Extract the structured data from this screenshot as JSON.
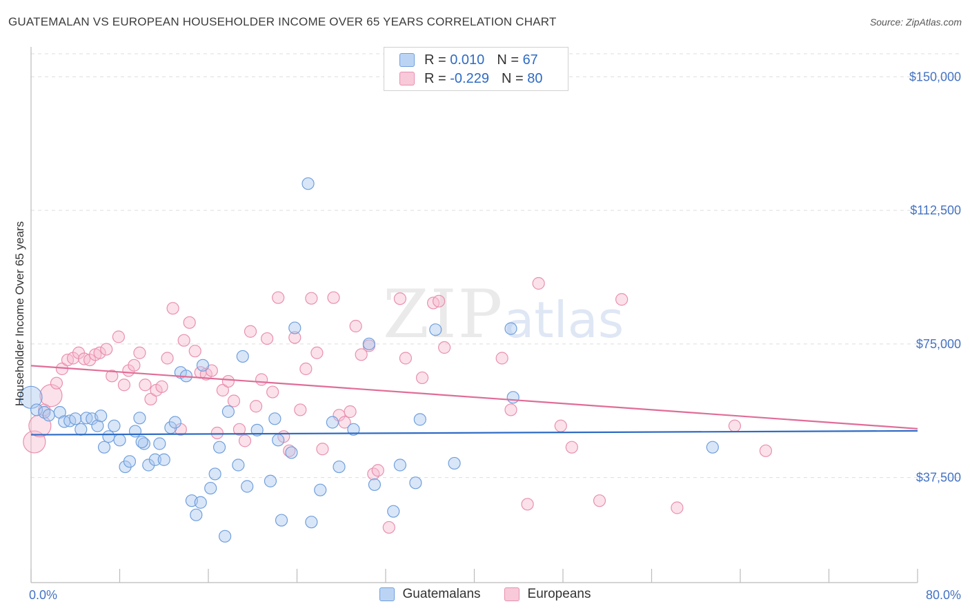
{
  "header": {
    "title": "GUATEMALAN VS EUROPEAN HOUSEHOLDER INCOME OVER 65 YEARS CORRELATION CHART",
    "source": "Source: ZipAtlas.com"
  },
  "legend": {
    "rows": [
      {
        "r_label": "R = ",
        "r_value": "0.010",
        "n_label": "N = ",
        "n_value": "67"
      },
      {
        "r_label": "R = ",
        "r_value": "-0.229",
        "n_label": "N = ",
        "n_value": "80"
      }
    ]
  },
  "watermark": {
    "zip": "ZIP",
    "atlas": "atlas"
  },
  "chart_data": {
    "type": "scatter",
    "title": "GUATEMALAN VS EUROPEAN HOUSEHOLDER INCOME OVER 65 YEARS CORRELATION CHART",
    "xlabel": "",
    "ylabel": "Householder Income Over 65 years",
    "xlim": [
      0,
      80
    ],
    "ylim": [
      8000,
      158000
    ],
    "x_tick_labels": [
      "0.0%",
      "80.0%"
    ],
    "y_ticks": [
      37500,
      75000,
      112500,
      150000
    ],
    "y_tick_labels": [
      "$37,500",
      "$75,000",
      "$112,500",
      "$150,000"
    ],
    "grid": true,
    "legend_position": "top-center",
    "colors": {
      "guatemalans_fill": "#aac8f0",
      "guatemalans_stroke": "#6f9fdc",
      "guatemalans_line": "#2e6bc4",
      "europeans_fill": "#f6bcd0",
      "europeans_stroke": "#e98fae",
      "europeans_line": "#e06c97"
    },
    "series": [
      {
        "name": "Guatemalans",
        "trend": {
          "x": [
            0,
            80
          ],
          "y": [
            49500,
            50600
          ]
        },
        "points": [
          {
            "x": 0.0,
            "y": 60000,
            "big": true
          },
          {
            "x": 0.5,
            "y": 56500
          },
          {
            "x": 1.2,
            "y": 55800
          },
          {
            "x": 1.6,
            "y": 55000
          },
          {
            "x": 2.6,
            "y": 55800
          },
          {
            "x": 3.0,
            "y": 53200
          },
          {
            "x": 3.5,
            "y": 53400
          },
          {
            "x": 4.0,
            "y": 54000
          },
          {
            "x": 4.5,
            "y": 51000
          },
          {
            "x": 5.0,
            "y": 54200
          },
          {
            "x": 5.5,
            "y": 54000
          },
          {
            "x": 6.0,
            "y": 52000
          },
          {
            "x": 6.3,
            "y": 54800
          },
          {
            "x": 6.6,
            "y": 46000
          },
          {
            "x": 7.0,
            "y": 49000
          },
          {
            "x": 7.5,
            "y": 52000
          },
          {
            "x": 8.0,
            "y": 48000
          },
          {
            "x": 8.5,
            "y": 40500
          },
          {
            "x": 8.9,
            "y": 42000
          },
          {
            "x": 9.4,
            "y": 50500
          },
          {
            "x": 9.8,
            "y": 54200
          },
          {
            "x": 10.2,
            "y": 47000
          },
          {
            "x": 10.6,
            "y": 41000
          },
          {
            "x": 11.2,
            "y": 42500
          },
          {
            "x": 11.6,
            "y": 47000
          },
          {
            "x": 12.0,
            "y": 42500
          },
          {
            "x": 12.6,
            "y": 51500
          },
          {
            "x": 13.0,
            "y": 53000
          },
          {
            "x": 13.5,
            "y": 67000
          },
          {
            "x": 14.0,
            "y": 66000
          },
          {
            "x": 14.5,
            "y": 31000
          },
          {
            "x": 14.9,
            "y": 27000
          },
          {
            "x": 15.3,
            "y": 30500
          },
          {
            "x": 15.5,
            "y": 69000
          },
          {
            "x": 16.2,
            "y": 34500
          },
          {
            "x": 16.6,
            "y": 38500
          },
          {
            "x": 17.0,
            "y": 46000
          },
          {
            "x": 17.5,
            "y": 21000
          },
          {
            "x": 17.8,
            "y": 56000
          },
          {
            "x": 18.7,
            "y": 41000
          },
          {
            "x": 19.1,
            "y": 71500
          },
          {
            "x": 19.5,
            "y": 35000
          },
          {
            "x": 20.4,
            "y": 50800
          },
          {
            "x": 21.6,
            "y": 36500
          },
          {
            "x": 22.0,
            "y": 54000
          },
          {
            "x": 22.3,
            "y": 48000
          },
          {
            "x": 22.6,
            "y": 25500
          },
          {
            "x": 23.5,
            "y": 44500
          },
          {
            "x": 23.8,
            "y": 79500
          },
          {
            "x": 25.0,
            "y": 120000
          },
          {
            "x": 25.3,
            "y": 25000
          },
          {
            "x": 26.1,
            "y": 34000
          },
          {
            "x": 27.2,
            "y": 53000
          },
          {
            "x": 27.8,
            "y": 40500
          },
          {
            "x": 29.1,
            "y": 51000
          },
          {
            "x": 30.5,
            "y": 75000
          },
          {
            "x": 31.0,
            "y": 35500
          },
          {
            "x": 32.7,
            "y": 28000
          },
          {
            "x": 33.3,
            "y": 41000
          },
          {
            "x": 34.7,
            "y": 36000
          },
          {
            "x": 35.1,
            "y": 53800
          },
          {
            "x": 36.5,
            "y": 79000
          },
          {
            "x": 38.2,
            "y": 41500
          },
          {
            "x": 43.3,
            "y": 79300
          },
          {
            "x": 43.5,
            "y": 60000
          },
          {
            "x": 61.5,
            "y": 46000
          },
          {
            "x": 10.0,
            "y": 47500
          }
        ]
      },
      {
        "name": "Europeans",
        "trend": {
          "x": [
            0,
            80
          ],
          "y": [
            68900,
            51200
          ]
        },
        "points": [
          {
            "x": 0.3,
            "y": 47500,
            "big": true
          },
          {
            "x": 0.8,
            "y": 52000,
            "big": true
          },
          {
            "x": 1.2,
            "y": 56500
          },
          {
            "x": 1.8,
            "y": 60500,
            "big": true
          },
          {
            "x": 2.3,
            "y": 64000
          },
          {
            "x": 2.8,
            "y": 68000
          },
          {
            "x": 3.3,
            "y": 70500
          },
          {
            "x": 3.8,
            "y": 71000
          },
          {
            "x": 4.3,
            "y": 72500
          },
          {
            "x": 4.8,
            "y": 70800
          },
          {
            "x": 5.3,
            "y": 70500
          },
          {
            "x": 5.8,
            "y": 72000
          },
          {
            "x": 6.2,
            "y": 72500
          },
          {
            "x": 6.8,
            "y": 73500
          },
          {
            "x": 7.3,
            "y": 66000
          },
          {
            "x": 7.9,
            "y": 77000
          },
          {
            "x": 8.4,
            "y": 63500
          },
          {
            "x": 8.8,
            "y": 67500
          },
          {
            "x": 9.3,
            "y": 69000
          },
          {
            "x": 9.8,
            "y": 72500
          },
          {
            "x": 10.3,
            "y": 63500
          },
          {
            "x": 10.8,
            "y": 59500
          },
          {
            "x": 11.3,
            "y": 62000
          },
          {
            "x": 11.8,
            "y": 63000
          },
          {
            "x": 12.3,
            "y": 71000
          },
          {
            "x": 12.8,
            "y": 85000
          },
          {
            "x": 13.5,
            "y": 51000
          },
          {
            "x": 13.8,
            "y": 76000
          },
          {
            "x": 14.3,
            "y": 81000
          },
          {
            "x": 14.8,
            "y": 73000
          },
          {
            "x": 15.3,
            "y": 67000
          },
          {
            "x": 15.8,
            "y": 66500
          },
          {
            "x": 16.3,
            "y": 67500
          },
          {
            "x": 16.8,
            "y": 50000
          },
          {
            "x": 17.3,
            "y": 62000
          },
          {
            "x": 17.8,
            "y": 64500
          },
          {
            "x": 18.3,
            "y": 59000
          },
          {
            "x": 18.8,
            "y": 51000
          },
          {
            "x": 19.3,
            "y": 47800
          },
          {
            "x": 19.8,
            "y": 78500
          },
          {
            "x": 20.3,
            "y": 57500
          },
          {
            "x": 20.8,
            "y": 65000
          },
          {
            "x": 21.3,
            "y": 76500
          },
          {
            "x": 21.8,
            "y": 61500
          },
          {
            "x": 22.3,
            "y": 88000
          },
          {
            "x": 22.8,
            "y": 49000
          },
          {
            "x": 23.3,
            "y": 45000
          },
          {
            "x": 23.8,
            "y": 76800
          },
          {
            "x": 24.3,
            "y": 56500
          },
          {
            "x": 24.8,
            "y": 68000
          },
          {
            "x": 25.3,
            "y": 87800
          },
          {
            "x": 25.8,
            "y": 72500
          },
          {
            "x": 26.3,
            "y": 45500
          },
          {
            "x": 27.3,
            "y": 88000
          },
          {
            "x": 27.8,
            "y": 55000
          },
          {
            "x": 28.3,
            "y": 53000
          },
          {
            "x": 28.8,
            "y": 56000
          },
          {
            "x": 29.3,
            "y": 80000
          },
          {
            "x": 29.8,
            "y": 72000
          },
          {
            "x": 30.5,
            "y": 74500
          },
          {
            "x": 30.9,
            "y": 38500
          },
          {
            "x": 31.3,
            "y": 39500
          },
          {
            "x": 32.3,
            "y": 23500
          },
          {
            "x": 33.3,
            "y": 87700
          },
          {
            "x": 33.8,
            "y": 71000
          },
          {
            "x": 35.3,
            "y": 65500
          },
          {
            "x": 36.3,
            "y": 86500
          },
          {
            "x": 36.8,
            "y": 87000
          },
          {
            "x": 37.3,
            "y": 74000
          },
          {
            "x": 42.5,
            "y": 71000
          },
          {
            "x": 43.3,
            "y": 56500
          },
          {
            "x": 44.8,
            "y": 30000
          },
          {
            "x": 45.8,
            "y": 92000
          },
          {
            "x": 47.8,
            "y": 52000
          },
          {
            "x": 48.8,
            "y": 46000
          },
          {
            "x": 51.3,
            "y": 31000
          },
          {
            "x": 53.3,
            "y": 87500
          },
          {
            "x": 58.3,
            "y": 29000
          },
          {
            "x": 63.5,
            "y": 52000
          },
          {
            "x": 66.3,
            "y": 45000
          }
        ]
      }
    ]
  },
  "bottom_legend": {
    "items": [
      "Guatemalans",
      "Europeans"
    ]
  }
}
